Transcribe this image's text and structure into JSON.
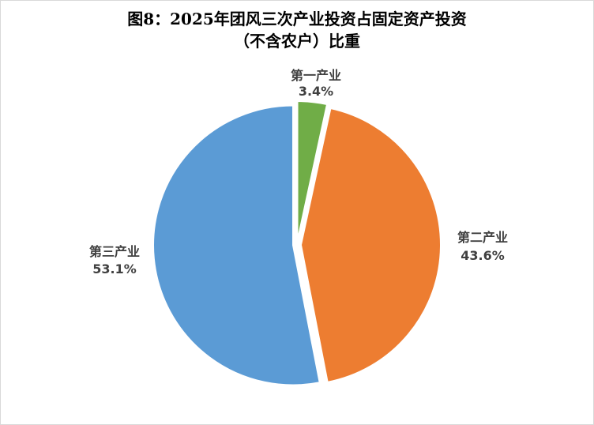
{
  "chart_data": {
    "type": "pie",
    "title": "图8：2025年团风三次产业投资占固定资产投资",
    "subtitle": "（不含农户）比重",
    "slices": [
      {
        "name": "第一产业",
        "value": 3.4,
        "label": "3.4%",
        "color": "#70ad47"
      },
      {
        "name": "第二产业",
        "value": 43.6,
        "label": "43.6%",
        "color": "#ed7d31"
      },
      {
        "name": "第三产业",
        "value": 53.1,
        "label": "53.1%",
        "color": "#5b9bd5"
      }
    ]
  }
}
